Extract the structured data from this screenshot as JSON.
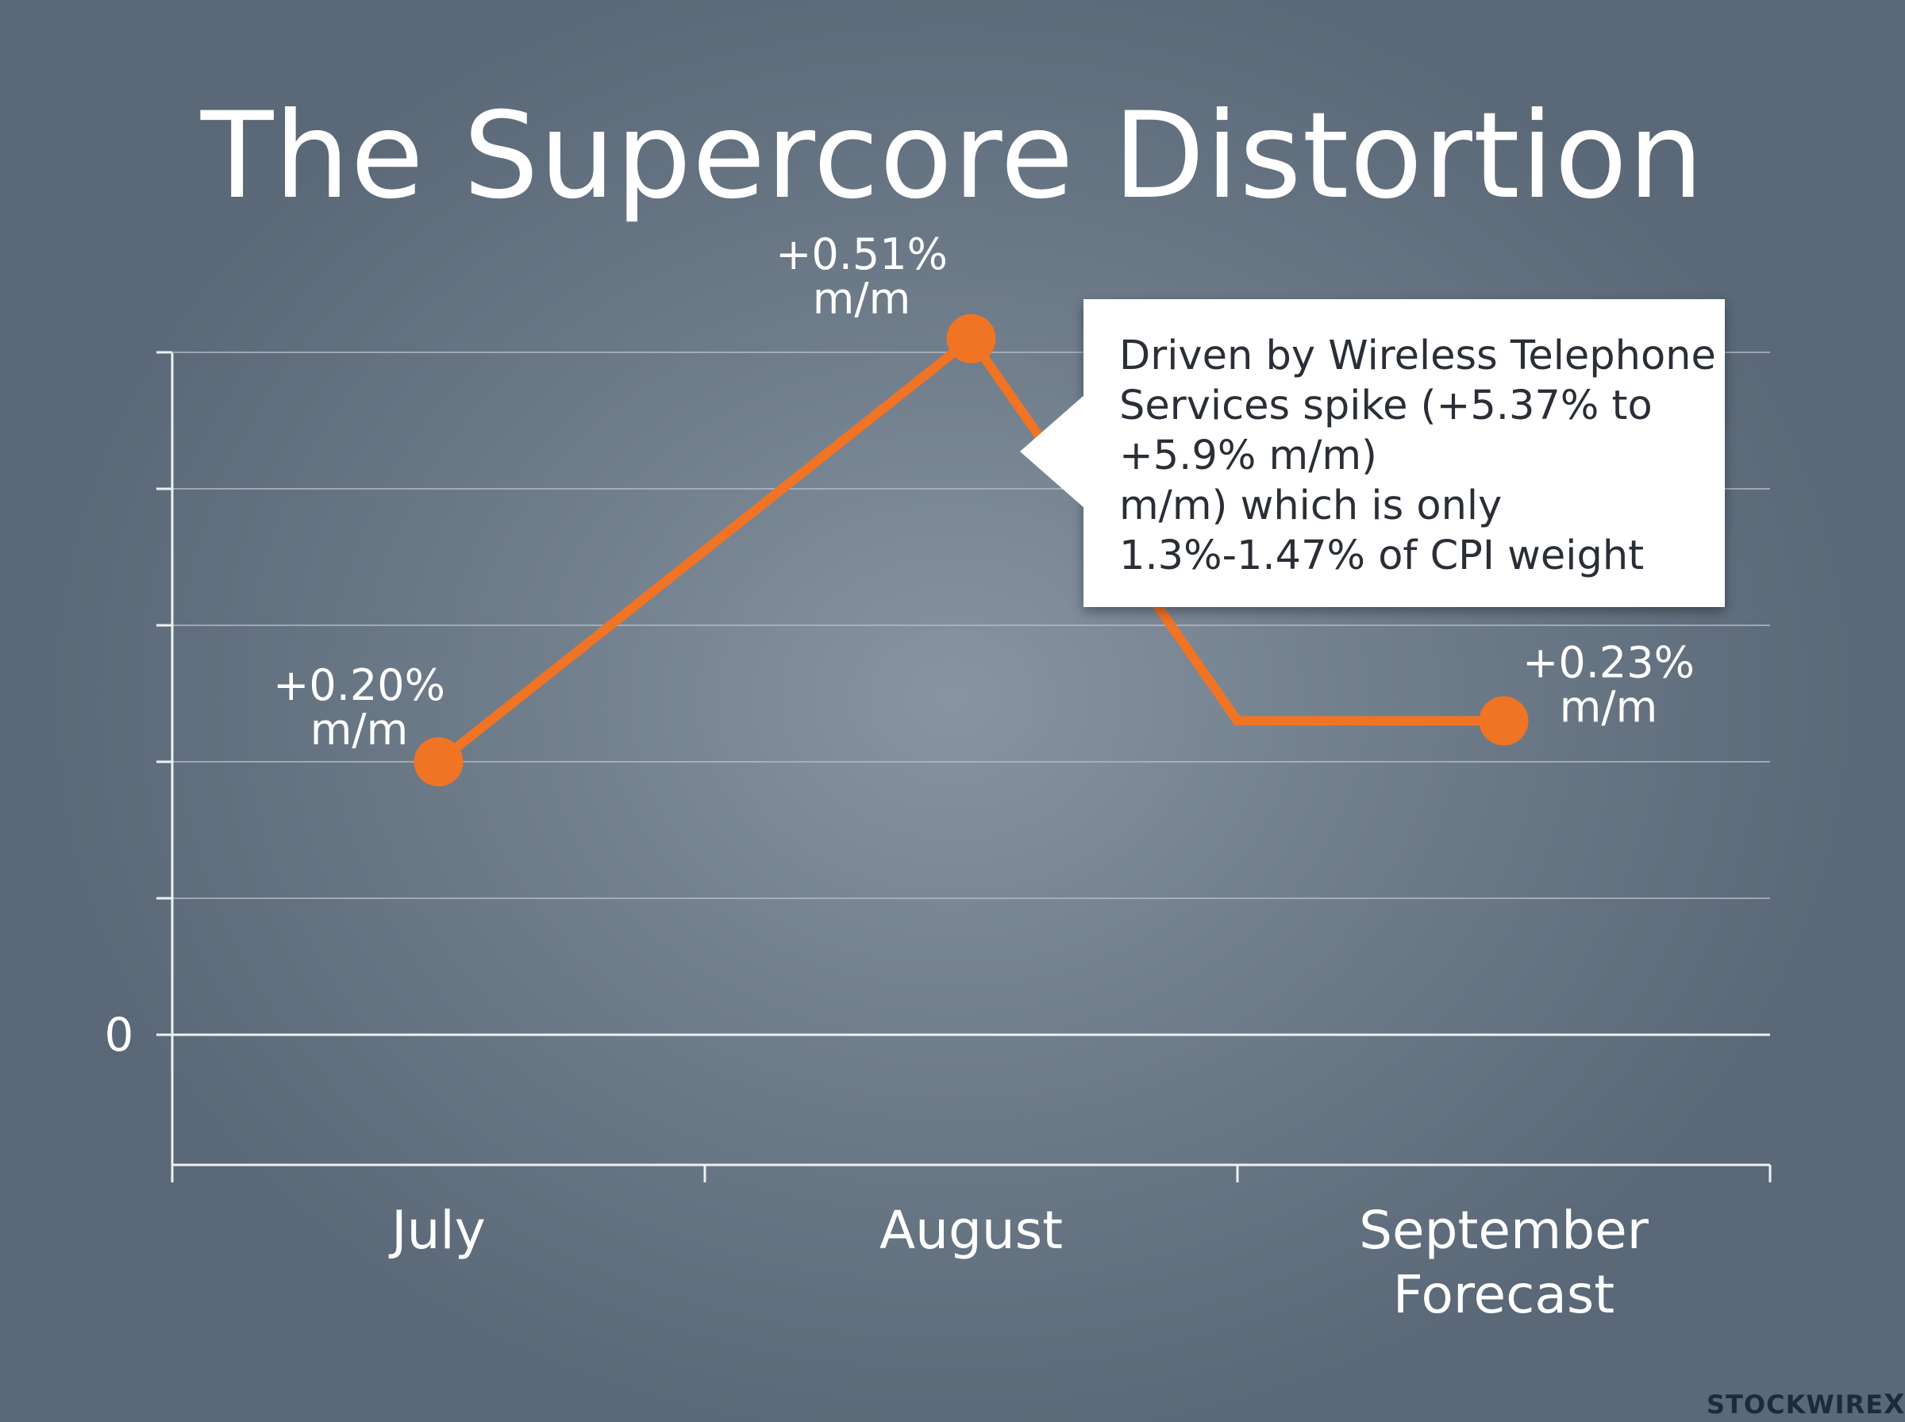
{
  "chart_data": {
    "type": "line",
    "title": "The Supercore Distortion",
    "categories": [
      "July",
      "August",
      "September Forecast"
    ],
    "category_lines": [
      [
        "July"
      ],
      [
        "August"
      ],
      [
        "September",
        "Forecast"
      ]
    ],
    "series": [
      {
        "values": [
          0.2,
          0.51,
          0.23
        ],
        "color": "#f07424"
      }
    ],
    "data_labels": [
      [
        "+0.20%",
        "m/m"
      ],
      [
        "+0.51%",
        "m/m"
      ],
      [
        "+0.23%",
        "m/m"
      ]
    ],
    "y_tick_labels": [
      "0"
    ],
    "ylim": [
      -0.1,
      0.5
    ],
    "grid": true,
    "annotation": {
      "lines": [
        "Driven by Wireless Telephone",
        "Services spike (+5.37% to",
        "+5.9% m/m)",
        "m/m) which is only",
        "1.3%-1.47% of CPI weight"
      ]
    }
  },
  "watermark": {
    "text": "STOCKWIRE",
    "mark": "X"
  }
}
